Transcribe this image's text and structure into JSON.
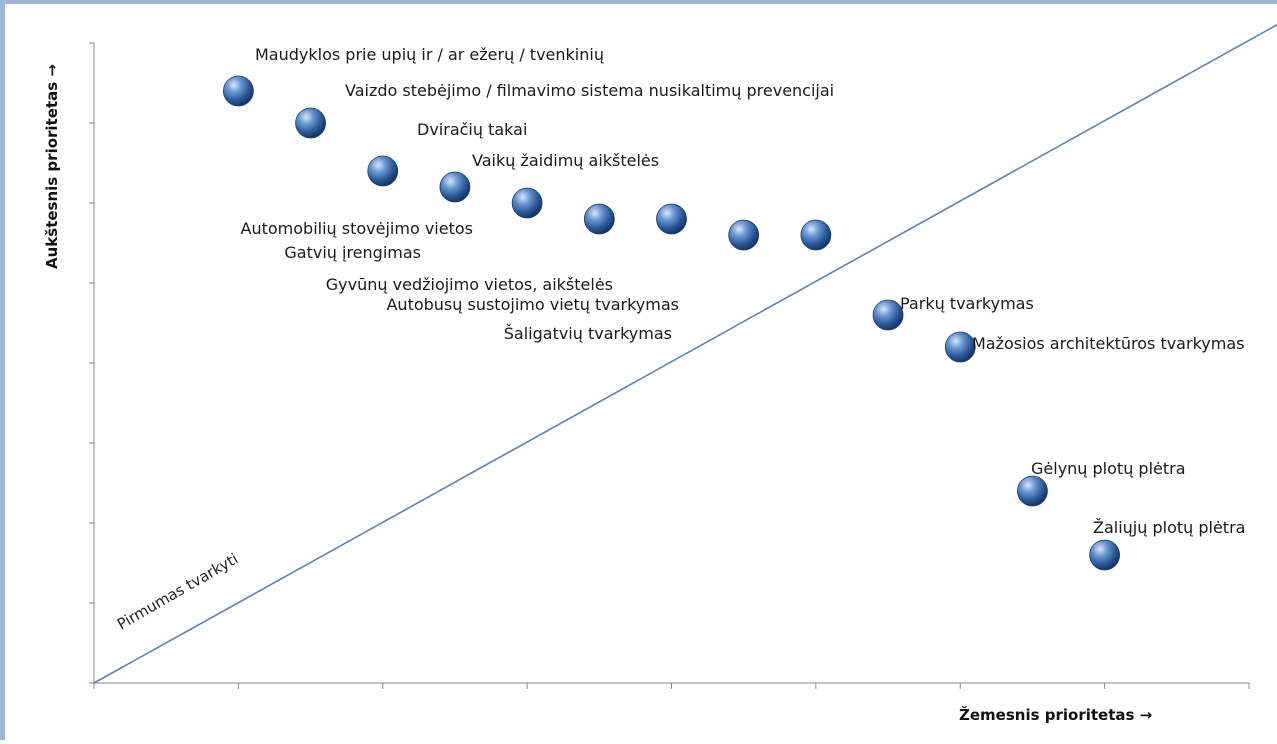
{
  "chart_data": {
    "type": "scatter",
    "title": "",
    "xlabel": "Žemesnis prioritetas →",
    "ylabel": "Aukštesnis prioritetas →",
    "xlim": [
      0,
      16
    ],
    "ylim": [
      0,
      8
    ],
    "grid": false,
    "legend": "none",
    "diagonal_label": "Pirmumas tvarkyti",
    "colors": {
      "point": "#2f5f9e",
      "point_highlight": "#c9dcf4",
      "axis": "#888888",
      "diagonal": "#5b84b1"
    },
    "points": [
      {
        "x": 2,
        "y": 7.4
      },
      {
        "x": 3,
        "y": 7.0
      },
      {
        "x": 4,
        "y": 6.4
      },
      {
        "x": 5,
        "y": 6.2
      },
      {
        "x": 6,
        "y": 6.0
      },
      {
        "x": 7,
        "y": 5.8
      },
      {
        "x": 8,
        "y": 5.8
      },
      {
        "x": 9,
        "y": 5.6
      },
      {
        "x": 10,
        "y": 5.6
      },
      {
        "x": 11,
        "y": 4.6
      },
      {
        "x": 12,
        "y": 4.2
      },
      {
        "x": 13,
        "y": 2.4
      },
      {
        "x": 14,
        "y": 1.6
      }
    ],
    "labels": [
      "Maudyklos prie upių ir / ar ežerų / tvenkinių",
      "Vaizdo stebėjimo / filmavimo sistema nusikaltimų prevencijai",
      "Dviračių takai",
      "Vaikų žaidimų aikštelės",
      "Automobilių  stovėjimo vietos",
      "Gatvių įrengimas",
      "Gyvūnų vedžiojimo vietos, aikštelės",
      "Autobusų  sustojimo vietų tvarkymas",
      "Šaligatvių tvarkymas",
      "Parkų tvarkymas",
      "Mažosios architektūros  tvarkymas",
      "Gėlynų plotų plėtra",
      "Žaliųjų plotų plėtra"
    ]
  }
}
